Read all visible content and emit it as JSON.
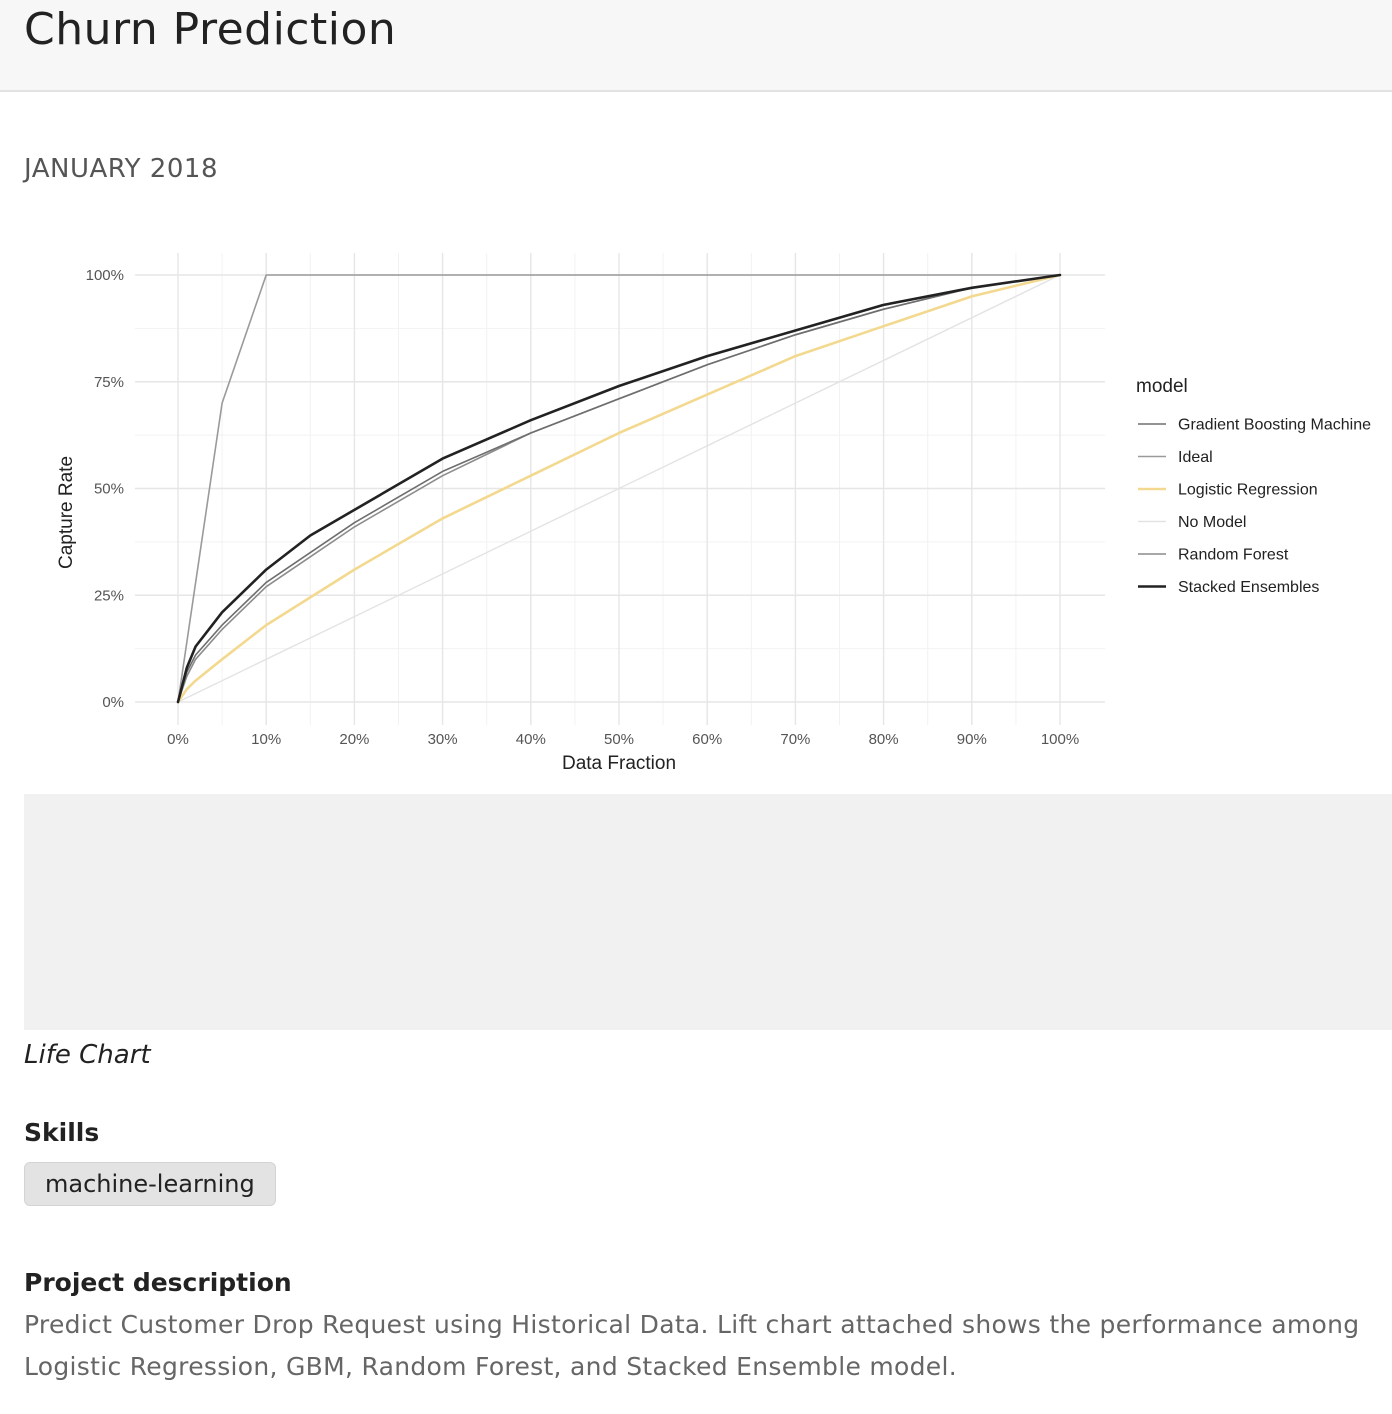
{
  "page": {
    "title": "Churn Prediction",
    "date": "JANUARY 2018",
    "caption": "Life Chart",
    "skills_heading": "Skills",
    "skills": [
      "machine-learning"
    ],
    "description_heading": "Project description",
    "description": "Predict Customer Drop Request using Historical Data. Lift chart attached shows the performance among Logistic Regression, GBM, Random Forest, and Stacked Ensemble model."
  },
  "chart_data": {
    "type": "line",
    "title": "",
    "xlabel": "Data Fraction",
    "ylabel": "Capture Rate",
    "xlim": [
      0,
      1
    ],
    "ylim": [
      0,
      1
    ],
    "x_ticks": [
      "0%",
      "10%",
      "20%",
      "30%",
      "40%",
      "50%",
      "60%",
      "70%",
      "80%",
      "90%",
      "100%"
    ],
    "y_ticks": [
      "0%",
      "25%",
      "50%",
      "75%",
      "100%"
    ],
    "grid": true,
    "legend_title": "model",
    "legend_position": "right",
    "series": [
      {
        "name": "Gradient Boosting Machine",
        "color": "#6e6e6e",
        "x": [
          0,
          0.01,
          0.02,
          0.05,
          0.1,
          0.15,
          0.2,
          0.3,
          0.4,
          0.5,
          0.6,
          0.7,
          0.8,
          0.9,
          1.0
        ],
        "y": [
          0,
          0.07,
          0.11,
          0.18,
          0.28,
          0.35,
          0.42,
          0.54,
          0.63,
          0.71,
          0.79,
          0.86,
          0.92,
          0.97,
          1.0
        ]
      },
      {
        "name": "Ideal",
        "color": "#9a9a9a",
        "x": [
          0,
          0.05,
          0.1,
          1.0
        ],
        "y": [
          0,
          0.7,
          1.0,
          1.0
        ]
      },
      {
        "name": "Logistic Regression",
        "color": "#f3d98f",
        "x": [
          0,
          0.01,
          0.02,
          0.05,
          0.1,
          0.2,
          0.3,
          0.4,
          0.5,
          0.6,
          0.7,
          0.8,
          0.9,
          1.0
        ],
        "y": [
          0,
          0.03,
          0.05,
          0.1,
          0.18,
          0.31,
          0.43,
          0.53,
          0.63,
          0.72,
          0.81,
          0.88,
          0.95,
          1.0
        ]
      },
      {
        "name": "No Model",
        "color": "#e3e3e3",
        "x": [
          0,
          1.0
        ],
        "y": [
          0,
          1.0
        ]
      },
      {
        "name": "Random Forest",
        "color": "#8c8c8c",
        "x": [
          0,
          0.01,
          0.02,
          0.05,
          0.1,
          0.15,
          0.2,
          0.3,
          0.4,
          0.5,
          0.6,
          0.7,
          0.8,
          0.9,
          1.0
        ],
        "y": [
          0,
          0.06,
          0.1,
          0.17,
          0.27,
          0.34,
          0.41,
          0.53,
          0.63,
          0.71,
          0.79,
          0.86,
          0.92,
          0.97,
          1.0
        ]
      },
      {
        "name": "Stacked Ensembles",
        "color": "#222222",
        "x": [
          0,
          0.01,
          0.02,
          0.05,
          0.1,
          0.15,
          0.2,
          0.3,
          0.4,
          0.5,
          0.6,
          0.7,
          0.8,
          0.9,
          1.0
        ],
        "y": [
          0,
          0.08,
          0.13,
          0.21,
          0.31,
          0.39,
          0.45,
          0.57,
          0.66,
          0.74,
          0.81,
          0.87,
          0.93,
          0.97,
          1.0
        ]
      }
    ]
  }
}
